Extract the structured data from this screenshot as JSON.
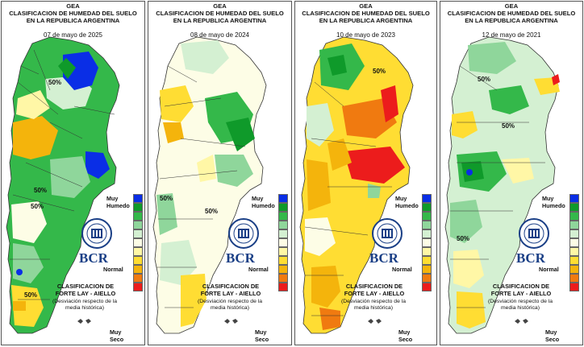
{
  "colors": {
    "very_humid": "#0a2ee6",
    "humid_dark": "#0f9a2a",
    "humid_mid": "#34b84a",
    "humid_light": "#8fd69b",
    "humid_pale": "#d4f0d2",
    "normal": "#fdfde6",
    "dry_pale": "#fff7a6",
    "dry_light": "#ffdd33",
    "dry_mid": "#f4b40c",
    "dry_dark": "#f07a10",
    "very_dry": "#ec1c1c"
  },
  "legend_scale": [
    "#0a2ee6",
    "#0f9a2a",
    "#34b84a",
    "#8fd69b",
    "#d4f0d2",
    "#fdfde6",
    "#fff7a6",
    "#ffdd33",
    "#f4b40c",
    "#f07a10",
    "#ec1c1c"
  ],
  "panels": [
    {
      "title_line1": "GEA",
      "title_line2": "CLASIFICACION DE HUMEDAD DEL SUELO",
      "title_line3": "EN LA REPUBLICA ARGENTINA",
      "date": "07 de mayo de 2025",
      "legend_humid": "Muy Humedo",
      "legend_normal": "Normal",
      "legend_dry": "Muy Seco",
      "logo_text": "BCR",
      "classification": "CLASIFICACION DE FORTE LAY - AIELLO",
      "deviation": "(Desviación respecto de la media histórica)",
      "iso_labels": [
        "50%",
        "50%",
        "50%",
        "50%"
      ],
      "fill_icon": "argentina-map-icon"
    },
    {
      "title_line1": "GEA",
      "title_line2": "CLASIFICACION DE HUMEDAD DEL SUELO",
      "title_line3": "EN LA REPUBLICA ARGENTINA",
      "date": "08 de mayo de 2024",
      "legend_humid": "Muy Humedo",
      "legend_normal": "Normal",
      "legend_dry": "Muy Seco",
      "logo_text": "BCR",
      "classification": "CLASIFICACION DE FORTE LAY - AIELLO",
      "deviation": "(Desviación respecto de la media histórica)",
      "iso_labels": [
        "50%",
        "50%"
      ],
      "fill_icon": "argentina-map-icon"
    },
    {
      "title_line1": "GEA",
      "title_line2": "CLASIFICACION DE HUMEDAD DEL SUELO",
      "title_line3": "EN LA REPUBLICA ARGENTINA",
      "date": "10 de mayo de 2023",
      "legend_humid": "Muy Humedo",
      "legend_normal": "Normal",
      "legend_dry": "Muy Seco",
      "logo_text": "BCR",
      "classification": "CLASIFICACION DE FORTE LAY - AIELLO",
      "deviation": "(Desviación respecto de la media histórica)",
      "iso_labels": [
        "50%"
      ],
      "fill_icon": "argentina-map-icon"
    },
    {
      "title_line1": "GEA",
      "title_line2": "CLASIFICACION DE HUMEDAD DEL SUELO",
      "title_line3": "EN LA REPUBLICA ARGENTINA",
      "date": "12 de mayo de 2021",
      "legend_humid": "Muy Humedo",
      "legend_normal": "Normal",
      "legend_dry": "Muy Seco",
      "logo_text": "BCR",
      "classification": "CLASIFICACION DE FORTE LAY - AIELLO",
      "deviation": "(Desviación respecto de la media histórica)",
      "iso_labels": [
        "50%",
        "50%",
        "50%"
      ],
      "fill_icon": "argentina-map-icon"
    }
  ]
}
